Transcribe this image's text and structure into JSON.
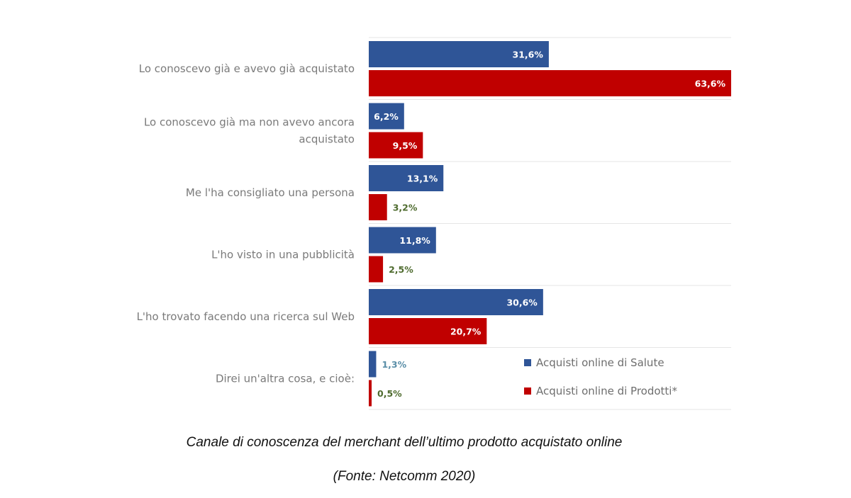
{
  "chart_data": {
    "type": "bar",
    "orientation": "horizontal",
    "categories": [
      [
        "Lo conoscevo già e avevo già acquistato"
      ],
      [
        "Lo conoscevo già ma non avevo ancora",
        "acquistato"
      ],
      [
        "Me l'ha consigliato una persona"
      ],
      [
        "L'ho visto in una pubblicità"
      ],
      [
        "L'ho trovato facendo una ricerca sul Web"
      ],
      [
        "Direi un'altra cosa, e cioè:"
      ]
    ],
    "series": [
      {
        "name": "Acquisti online di Salute",
        "color": "#2f5597",
        "values": [
          31.6,
          6.2,
          13.1,
          11.8,
          30.6,
          1.3
        ],
        "labels": [
          "31,6%",
          "6,2%",
          "13,1%",
          "11,8%",
          "30,6%",
          "1,3%"
        ]
      },
      {
        "name": "Acquisti online di Prodotti*",
        "color": "#c00000",
        "values": [
          63.6,
          9.5,
          3.2,
          2.5,
          20.7,
          0.5
        ],
        "labels": [
          "63,6%",
          "9,5%",
          "3,2%",
          "2,5%",
          "20,7%",
          "0,5%"
        ]
      }
    ],
    "xlim": [
      0,
      63.6
    ],
    "label_colors": {
      "outside_salute": "#5b8fa8",
      "outside_prodotti": "#4e6b2e"
    },
    "legend_position": "bottom-right",
    "grid": "horizontal separators"
  },
  "caption": {
    "title": "Canale di conoscenza del merchant dell’ultimo prodotto acquistato online",
    "source": "(Fonte: Netcomm 2020)"
  }
}
